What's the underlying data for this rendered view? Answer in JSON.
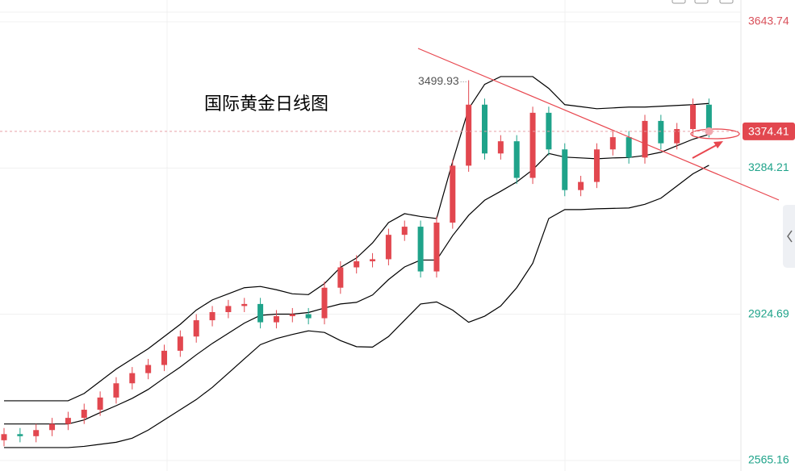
{
  "chart_data": {
    "type": "candlestick",
    "title": "国际黄金日线图",
    "open": [
      2615,
      2630,
      2625,
      2640,
      2655,
      2670,
      2690,
      2720,
      2755,
      2780,
      2800,
      2835,
      2870,
      2910,
      2930,
      2945,
      2950,
      2905,
      2920,
      2925,
      2915,
      2990,
      3040,
      3055,
      3060,
      3120,
      3140,
      3030,
      3150,
      3290,
      3440,
      3320,
      3350,
      3260,
      3420,
      3330,
      3230,
      3250,
      3330,
      3360,
      3310,
      3400,
      3345,
      3380,
      3440
    ],
    "high": [
      2645,
      2645,
      2655,
      2670,
      2685,
      2705,
      2735,
      2770,
      2795,
      2815,
      2850,
      2885,
      2925,
      2945,
      2960,
      2965,
      2965,
      2935,
      2940,
      2940,
      3005,
      3055,
      3070,
      3075,
      3135,
      3155,
      3155,
      3165,
      3305,
      3499.93,
      3455,
      3365,
      3365,
      3435,
      3435,
      3345,
      3265,
      3345,
      3375,
      3375,
      3415,
      3415,
      3395,
      3455,
      3455
    ],
    "low": [
      2600,
      2610,
      2610,
      2625,
      2640,
      2655,
      2675,
      2705,
      2740,
      2765,
      2785,
      2820,
      2855,
      2895,
      2915,
      2930,
      2890,
      2890,
      2905,
      2900,
      2900,
      2975,
      3025,
      3040,
      3045,
      3105,
      3015,
      3015,
      3135,
      3275,
      3305,
      3305,
      3245,
      3245,
      3315,
      3215,
      3215,
      3235,
      3315,
      3295,
      3295,
      3330,
      3330,
      3365,
      3359.41
    ],
    "close": [
      2630,
      2625,
      2640,
      2655,
      2670,
      2690,
      2720,
      2755,
      2780,
      2800,
      2835,
      2870,
      2910,
      2930,
      2945,
      2950,
      2905,
      2920,
      2925,
      2915,
      2990,
      3040,
      3055,
      3060,
      3120,
      3140,
      3030,
      3150,
      3290,
      3440,
      3320,
      3350,
      3260,
      3420,
      3330,
      3230,
      3250,
      3330,
      3360,
      3310,
      3400,
      3345,
      3380,
      3440,
      3374.41
    ],
    "up_color": "#e2474f",
    "down_color": "#1fa38a",
    "series": [
      {
        "color": "#000000",
        "values": [
          2712,
          2712,
          2712,
          2712,
          2712,
          2730,
          2760,
          2790,
          2815,
          2840,
          2870,
          2900,
          2935,
          2960,
          2975,
          2990,
          2993,
          2985,
          2975,
          2973,
          3000,
          3040,
          3063,
          3100,
          3150,
          3172,
          3165,
          3160,
          3300,
          3430,
          3490,
          3509,
          3509,
          3509,
          3480,
          3440,
          3435,
          3430,
          3432,
          3434,
          3434,
          3436,
          3438,
          3440,
          3443
        ]
      },
      {
        "color": "#000000",
        "values": [
          2655,
          2655,
          2655,
          2655,
          2655,
          2665,
          2683,
          2700,
          2718,
          2740,
          2768,
          2795,
          2825,
          2853,
          2878,
          2903,
          2922,
          2925,
          2925,
          2929,
          2940,
          2950,
          2954,
          2972,
          3010,
          3041,
          3058,
          3058,
          3118,
          3168,
          3205,
          3227,
          3250,
          3280,
          3320,
          3311,
          3309,
          3307,
          3309,
          3310,
          3315,
          3323,
          3339,
          3355,
          3367
        ]
      },
      {
        "color": "#000000",
        "values": [
          2597,
          2597,
          2597,
          2597,
          2597,
          2600,
          2605,
          2610,
          2620,
          2640,
          2665,
          2690,
          2715,
          2745,
          2780,
          2815,
          2850,
          2865,
          2875,
          2884,
          2880,
          2860,
          2845,
          2844,
          2870,
          2910,
          2950,
          2955,
          2935,
          2905,
          2920,
          2945,
          2990,
          3050,
          3160,
          3182,
          3182,
          3184,
          3185,
          3186,
          3195,
          3210,
          3240,
          3270,
          3291
        ]
      }
    ],
    "ylim": [
      2565.16,
      3643.74
    ],
    "yticks": [
      2565.16,
      2924.69,
      3284.21,
      3643.74
    ],
    "grid": true
  }
}
